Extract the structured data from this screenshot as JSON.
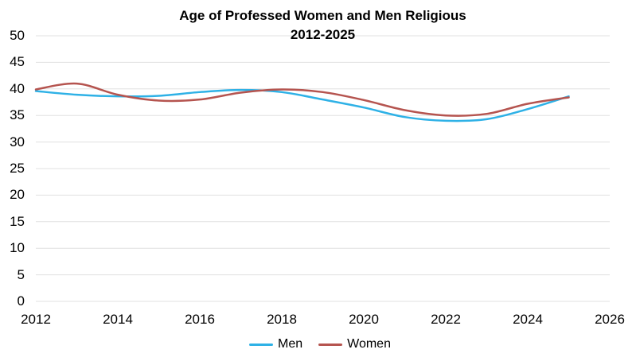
{
  "chart_data": {
    "type": "line",
    "title": "Age of Professed Women and Men Religious",
    "subtitle": "2012-2025",
    "x": [
      2012,
      2013,
      2014,
      2015,
      2016,
      2017,
      2018,
      2019,
      2020,
      2021,
      2022,
      2023,
      2024,
      2025
    ],
    "series": [
      {
        "name": "Men",
        "color": "#2EB1E6",
        "values": [
          39.6,
          38.9,
          38.6,
          38.7,
          39.4,
          39.8,
          39.4,
          38.0,
          36.5,
          34.7,
          34.0,
          34.3,
          36.2,
          38.6
        ]
      },
      {
        "name": "Women",
        "color": "#B5544F",
        "values": [
          39.9,
          41.0,
          38.9,
          37.8,
          38.0,
          39.3,
          39.9,
          39.4,
          37.9,
          36.0,
          35.0,
          35.3,
          37.2,
          38.4
        ]
      }
    ],
    "xlabel": "",
    "ylabel": "",
    "xlim": [
      2012,
      2026
    ],
    "ylim": [
      0,
      50
    ],
    "xticks": [
      2012,
      2014,
      2016,
      2018,
      2020,
      2022,
      2024,
      2026
    ],
    "yticks": [
      0,
      5,
      10,
      15,
      20,
      25,
      30,
      35,
      40,
      45,
      50
    ],
    "grid": "horizontal",
    "smooth": true,
    "legend_position": "bottom-center"
  },
  "colors": {
    "gridline": "#E0E0E0",
    "text": "#000000",
    "background": "#FFFFFF"
  }
}
